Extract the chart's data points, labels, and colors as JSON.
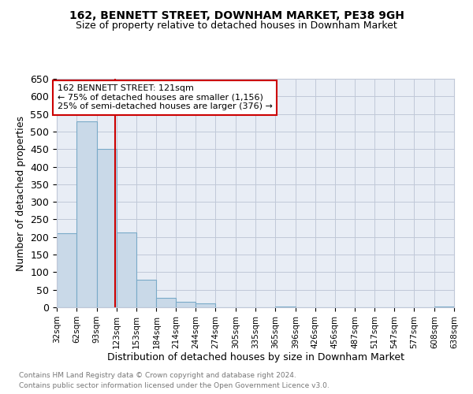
{
  "title": "162, BENNETT STREET, DOWNHAM MARKET, PE38 9GH",
  "subtitle": "Size of property relative to detached houses in Downham Market",
  "xlabel": "Distribution of detached houses by size in Downham Market",
  "ylabel": "Number of detached properties",
  "footnote1": "Contains HM Land Registry data © Crown copyright and database right 2024.",
  "footnote2": "Contains public sector information licensed under the Open Government Licence v3.0.",
  "bar_edges": [
    32,
    62,
    93,
    123,
    153,
    184,
    214,
    244,
    274,
    305,
    335,
    365,
    396,
    426,
    456,
    487,
    517,
    547,
    577,
    608,
    638
  ],
  "bar_heights": [
    210,
    530,
    450,
    213,
    78,
    27,
    15,
    11,
    0,
    0,
    0,
    3,
    0,
    0,
    0,
    0,
    0,
    1,
    0,
    2
  ],
  "bar_color": "#c9d9e8",
  "bar_edge_color": "#7aaac8",
  "vline_x": 121,
  "vline_color": "#cc0000",
  "ylim": [
    0,
    650
  ],
  "yticks": [
    0,
    50,
    100,
    150,
    200,
    250,
    300,
    350,
    400,
    450,
    500,
    550,
    600,
    650
  ],
  "annotation_title": "162 BENNETT STREET: 121sqm",
  "annotation_line1": "← 75% of detached houses are smaller (1,156)",
  "annotation_line2": "25% of semi-detached houses are larger (376) →",
  "grid_color": "#c0c8d8",
  "bg_color": "#e8edf5",
  "title_fontsize": 10,
  "subtitle_fontsize": 9,
  "ylabel_fontsize": 9,
  "xlabel_fontsize": 9,
  "ytick_fontsize": 9,
  "xtick_fontsize": 7.5
}
